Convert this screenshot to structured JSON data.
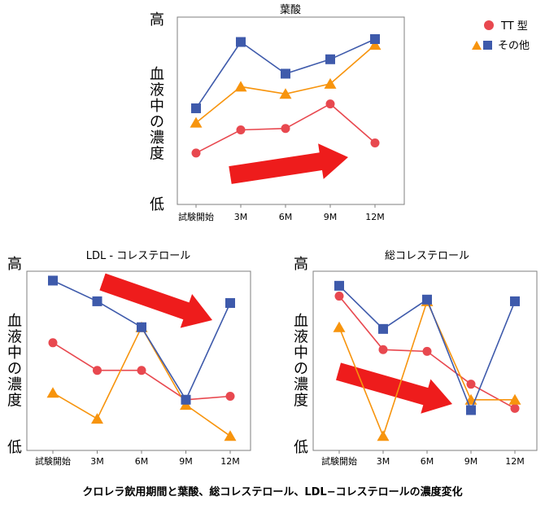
{
  "legend": {
    "tt": {
      "label": "TT 型",
      "color": "#e8484f",
      "marker": "circle"
    },
    "other": {
      "label": "その他",
      "color_a": "#f7940d",
      "color_b": "#3e5aab",
      "markers": [
        "triangle",
        "square"
      ]
    }
  },
  "caption": "クロレラ飲用期間と葉酸、総コレステロール、LDL−コレステロールの濃度変化",
  "y_high_label": "高",
  "y_low_label": "低",
  "y_axis_title_chars": [
    "血",
    "液",
    "中",
    "の",
    "濃",
    "度"
  ],
  "colors": {
    "tt": "#e8484f",
    "orange": "#f7940d",
    "blue": "#3e5aab",
    "arrow": "#ee1c1c",
    "axis": "#7f7f7f"
  },
  "chart_data": [
    {
      "type": "line",
      "title": "葉酸",
      "categories": [
        "試験開始",
        "3M",
        "6M",
        "9M",
        "12M"
      ],
      "ylim": [
        0,
        10
      ],
      "series": [
        {
          "name": "TT 型",
          "marker": "circle",
          "color": "#e8484f",
          "values": [
            2.1,
            3.7,
            3.8,
            5.5,
            2.8
          ]
        },
        {
          "name": "その他",
          "marker": "triangle",
          "color": "#f7940d",
          "values": [
            4.2,
            6.7,
            6.2,
            6.9,
            9.6
          ]
        },
        {
          "name": "その他",
          "marker": "square",
          "color": "#3e5aab",
          "values": [
            5.2,
            9.8,
            7.6,
            8.6,
            10.0
          ]
        }
      ],
      "arrow": "up-right"
    },
    {
      "type": "line",
      "title": "LDL - コレステロール",
      "categories": [
        "試験開始",
        "3M",
        "6M",
        "9M",
        "12M"
      ],
      "ylim": [
        0,
        10
      ],
      "series": [
        {
          "name": "TT 型",
          "marker": "circle",
          "color": "#e8484f",
          "values": [
            6.0,
            4.4,
            4.4,
            2.7,
            2.9
          ]
        },
        {
          "name": "その他",
          "marker": "triangle",
          "color": "#f7940d",
          "values": [
            3.1,
            1.6,
            6.9,
            2.4,
            0.6
          ]
        },
        {
          "name": "その他",
          "marker": "square",
          "color": "#3e5aab",
          "values": [
            9.6,
            8.4,
            6.9,
            2.7,
            8.3
          ]
        }
      ],
      "arrow": "down-right"
    },
    {
      "type": "line",
      "title": "総コレステロール",
      "categories": [
        "試験開始",
        "3M",
        "6M",
        "9M",
        "12M"
      ],
      "ylim": [
        0,
        10
      ],
      "series": [
        {
          "name": "TT 型",
          "marker": "circle",
          "color": "#e8484f",
          "values": [
            8.7,
            5.6,
            5.5,
            3.6,
            2.2
          ]
        },
        {
          "name": "その他",
          "marker": "triangle",
          "color": "#f7940d",
          "values": [
            6.9,
            0.6,
            8.4,
            2.7,
            2.7
          ]
        },
        {
          "name": "その他",
          "marker": "square",
          "color": "#3e5aab",
          "values": [
            9.3,
            6.8,
            8.5,
            2.1,
            8.4
          ]
        }
      ],
      "arrow": "down-right"
    }
  ]
}
